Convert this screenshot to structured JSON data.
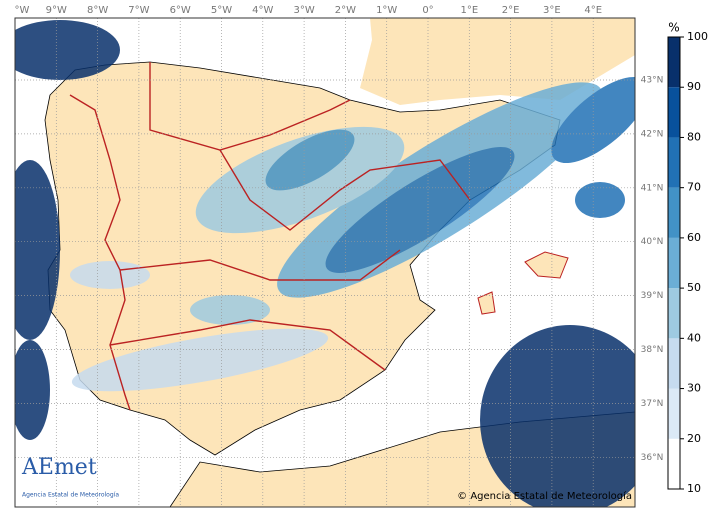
{
  "map": {
    "lon_labels": [
      "°W",
      "9°W",
      "8°W",
      "7°W",
      "6°W",
      "5°W",
      "4°W",
      "3°W",
      "2°W",
      "1°W",
      "0°",
      "1°E",
      "2°E",
      "3°E",
      "4°E"
    ],
    "lat_labels": [
      "43°N",
      "42°N",
      "41°N",
      "40°N",
      "39°N",
      "38°N",
      "37°N",
      "36°N"
    ],
    "colorbar": {
      "unit": "%",
      "range": [
        10,
        100
      ],
      "ticks": [
        10,
        20,
        30,
        40,
        50,
        60,
        70,
        80,
        90,
        100
      ],
      "colors": [
        "#ffffff",
        "#dbe9f6",
        "#c6dbef",
        "#9ecae1",
        "#6baed6",
        "#4292c6",
        "#2171b5",
        "#08519c",
        "#08306b"
      ]
    },
    "logo": {
      "name": "AEmet",
      "subtitle": "Agencia Estatal de Meteorología"
    },
    "credit": "© Agencia Estatal de Meteorología"
  }
}
